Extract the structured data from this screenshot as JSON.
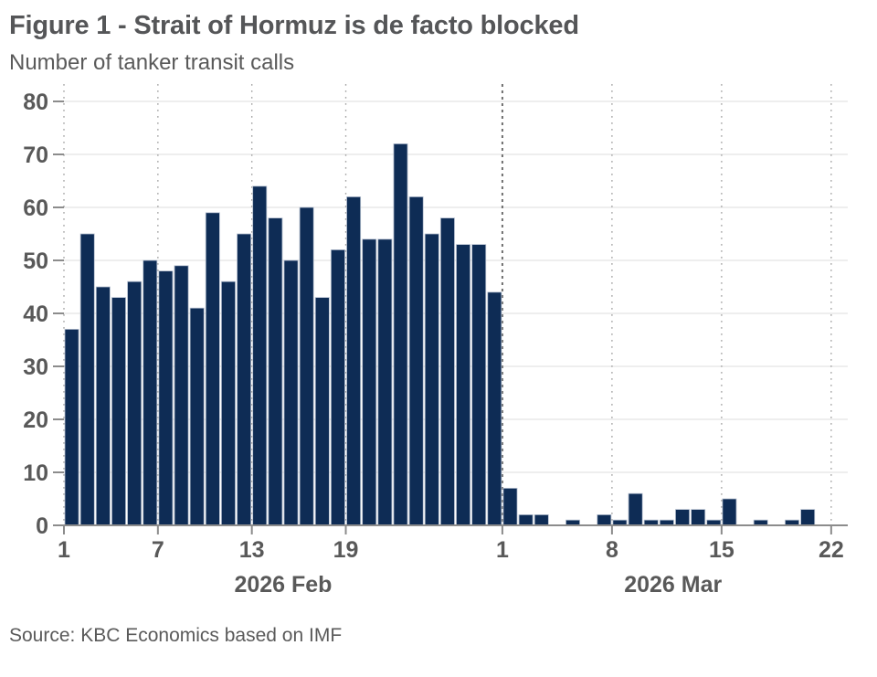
{
  "figure": {
    "title": "Figure 1 - Strait of Hormuz is de facto blocked",
    "subtitle": "Number of tanker transit calls",
    "source": "Source: KBC Economics based on IMF"
  },
  "colors": {
    "bar": "#0e2c55",
    "bar_border": "#b6c0d0",
    "text": "#595959",
    "grid": "#dcdcdc",
    "axis": "#8c8c8c",
    "dotted_gridline": "#a8a8a8",
    "event_line": "#6f6f6f",
    "background": "#ffffff"
  },
  "chart_data": {
    "type": "bar",
    "title": "Figure 1 - Strait of Hormuz is de facto blocked",
    "subtitle": "Number of tanker transit calls",
    "xlabel": "",
    "ylabel": "Number of tanker transit calls",
    "ylim": [
      0,
      80
    ],
    "yticks": [
      0,
      10,
      20,
      30,
      40,
      50,
      60,
      70,
      80
    ],
    "grid": "horizontal solid, vertical dotted at labeled days",
    "legend": "none",
    "series": [
      {
        "name": "2026 Feb",
        "days": [
          1,
          2,
          3,
          4,
          5,
          6,
          7,
          8,
          9,
          10,
          11,
          12,
          13,
          14,
          15,
          16,
          17,
          18,
          19,
          20,
          21,
          22,
          23,
          24,
          25,
          26,
          27,
          28
        ],
        "values": [
          37,
          55,
          45,
          43,
          46,
          50,
          48,
          49,
          41,
          59,
          46,
          55,
          64,
          58,
          50,
          60,
          43,
          52,
          62,
          54,
          54,
          72,
          62,
          55,
          58,
          53,
          53,
          44
        ]
      },
      {
        "name": "2026 Mar",
        "days": [
          1,
          2,
          3,
          4,
          5,
          6,
          7,
          8,
          9,
          10,
          11,
          12,
          13,
          14,
          15,
          16,
          17,
          18,
          19,
          20,
          21,
          22
        ],
        "values": [
          7,
          2,
          2,
          0,
          1,
          0,
          2,
          1,
          6,
          1,
          1,
          3,
          3,
          1,
          5,
          0,
          1,
          0,
          1,
          3,
          0,
          0
        ]
      }
    ],
    "xticks": [
      {
        "label": "1",
        "day_index": 0
      },
      {
        "label": "7",
        "day_index": 6
      },
      {
        "label": "13",
        "day_index": 12
      },
      {
        "label": "19",
        "day_index": 18
      },
      {
        "label": "1",
        "day_index": 28
      },
      {
        "label": "8",
        "day_index": 35
      },
      {
        "label": "15",
        "day_index": 42
      },
      {
        "label": "22",
        "day_index": 49
      }
    ],
    "month_labels": [
      {
        "label": "2026 Feb",
        "center_index": 14
      },
      {
        "label": "2026 Mar",
        "center_index": 38.9
      }
    ],
    "event_line_day_index": 28
  }
}
